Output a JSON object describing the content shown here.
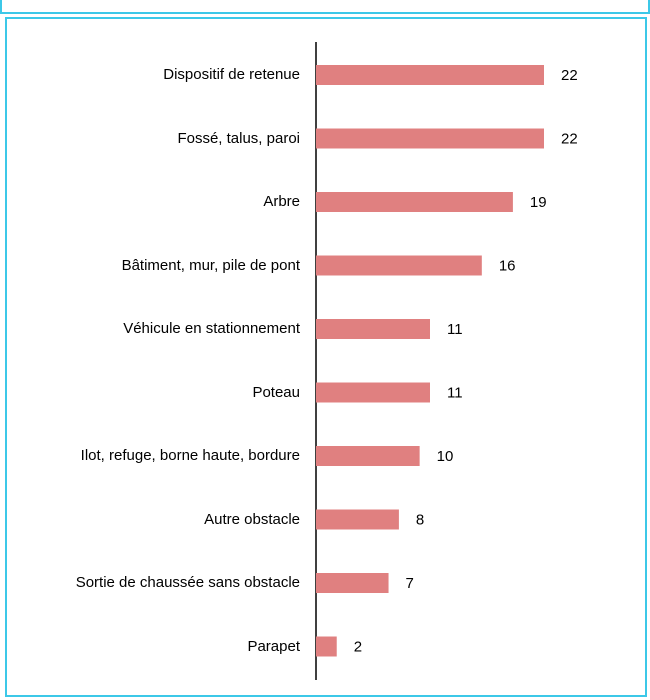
{
  "chart_data": {
    "type": "bar",
    "orientation": "horizontal",
    "categories": [
      "Dispositif de retenue",
      "Fossé, talus, paroi",
      "Arbre",
      "Bâtiment, mur, pile de pont",
      "Véhicule en stationnement",
      "Poteau",
      "Ilot, refuge, borne haute, bordure",
      "Autre obstacle",
      "Sortie de chaussée sans obstacle",
      "Parapet"
    ],
    "values": [
      22,
      22,
      19,
      16,
      11,
      11,
      10,
      8,
      7,
      2
    ],
    "color": "#e08080"
  }
}
